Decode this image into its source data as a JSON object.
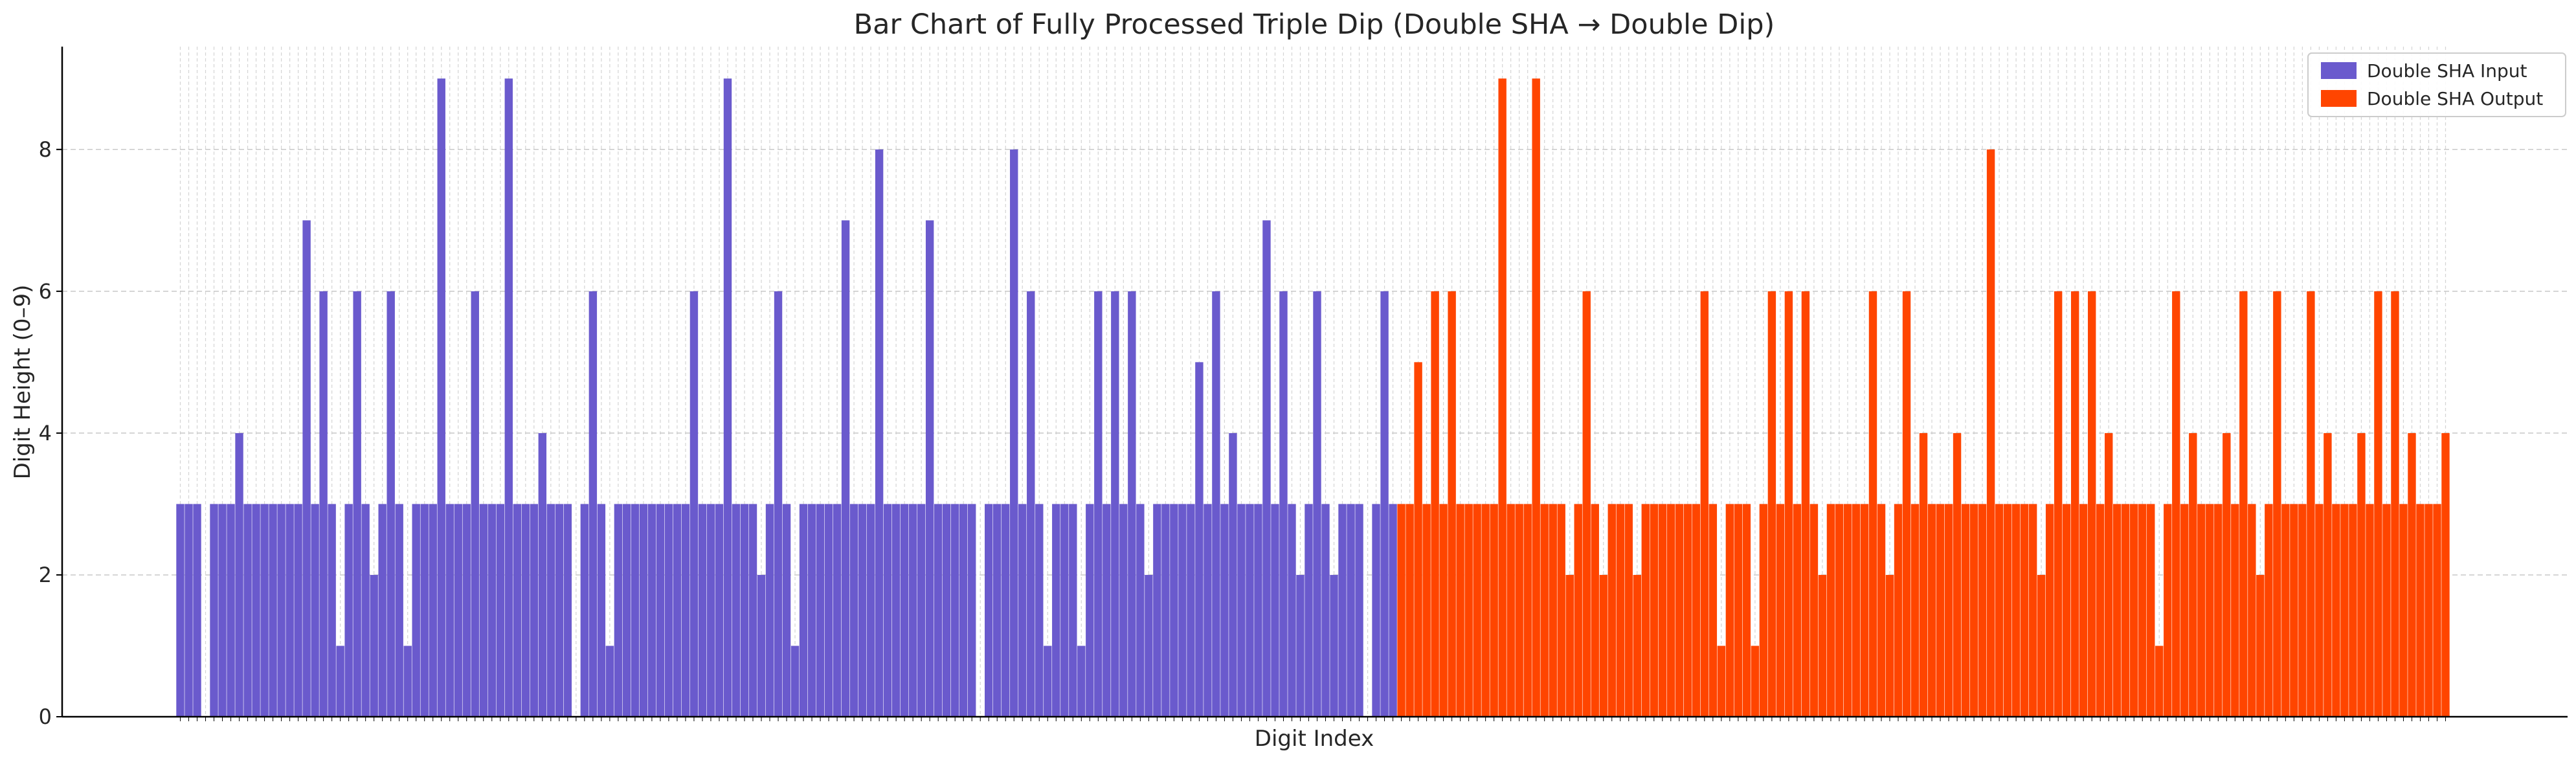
{
  "chart_data": {
    "type": "bar",
    "title": "Bar Chart of Fully Processed Triple Dip (Double SHA → Double Dip)",
    "xlabel": "Digit Index",
    "ylabel": "Digit Height (0–9)",
    "ylim": [
      0,
      9.45
    ],
    "yticks": [
      0,
      2,
      4,
      6,
      8
    ],
    "xtick_labels": false,
    "grid": true,
    "legend_position": "top-right",
    "series": [
      {
        "name": "Double SHA Input",
        "color": "#6a5acd",
        "values": [
          3,
          3,
          3,
          0,
          3,
          3,
          3,
          4,
          3,
          3,
          3,
          3,
          3,
          3,
          3,
          7,
          3,
          6,
          3,
          1,
          3,
          6,
          3,
          2,
          3,
          6,
          3,
          1,
          3,
          3,
          3,
          9,
          3,
          3,
          3,
          6,
          3,
          3,
          3,
          9,
          3,
          3,
          3,
          4,
          3,
          3,
          3,
          0,
          3,
          6,
          3,
          1,
          3,
          3,
          3,
          3,
          3,
          3,
          3,
          3,
          3,
          6,
          3,
          3,
          3,
          9,
          3,
          3,
          3,
          2,
          3,
          6,
          3,
          1,
          3,
          3,
          3,
          3,
          3,
          7,
          3,
          3,
          3,
          8,
          3,
          3,
          3,
          3,
          3,
          7,
          3,
          3,
          3,
          3,
          3,
          0,
          3,
          3,
          3,
          8,
          3,
          6,
          3,
          1,
          3,
          3,
          3,
          1,
          3,
          6,
          3,
          6,
          3,
          6,
          3,
          2,
          3,
          3,
          3,
          3,
          3,
          5,
          3,
          6,
          3,
          4,
          3,
          3,
          3,
          7,
          3,
          6,
          3,
          2,
          3,
          6,
          3,
          2,
          3,
          3,
          3,
          0,
          3,
          6,
          3
        ]
      },
      {
        "name": "Double SHA Output",
        "color": "#ff4500",
        "values": [
          3,
          3,
          5,
          3,
          6,
          3,
          6,
          3,
          3,
          3,
          3,
          3,
          9,
          3,
          3,
          3,
          9,
          3,
          3,
          3,
          2,
          3,
          6,
          3,
          2,
          3,
          3,
          3,
          2,
          3,
          3,
          3,
          3,
          3,
          3,
          3,
          6,
          3,
          1,
          3,
          3,
          3,
          1,
          3,
          6,
          3,
          6,
          3,
          6,
          3,
          2,
          3,
          3,
          3,
          3,
          3,
          6,
          3,
          2,
          3,
          6,
          3,
          4,
          3,
          3,
          3,
          4,
          3,
          3,
          3,
          8,
          3,
          3,
          3,
          3,
          3,
          2,
          3,
          6,
          3,
          6,
          3,
          6,
          3,
          4,
          3,
          3,
          3,
          3,
          3,
          1,
          3,
          6,
          3,
          4,
          3,
          3,
          3,
          4,
          3,
          6,
          3,
          2,
          3,
          6,
          3,
          3,
          3,
          6,
          3,
          4,
          3,
          3,
          3,
          4,
          3,
          6,
          3,
          6,
          3,
          4,
          3,
          3,
          3,
          4
        ]
      }
    ]
  }
}
